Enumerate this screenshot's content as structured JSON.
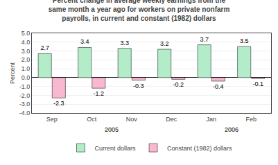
{
  "chart_data": {
    "type": "bar",
    "title": "Percent change in average weekly earnings from the\nsame month a year ago for workers on private nonfarm\npayrolls, in current and constant (1982) dollars",
    "categories": [
      "Sep",
      "Oct",
      "Nov",
      "Dec",
      "Jan",
      "Feb"
    ],
    "series": [
      {
        "name": "Current dollars",
        "color": "#b2ecc8",
        "values": [
          2.7,
          3.4,
          3.3,
          3.2,
          3.7,
          3.5
        ]
      },
      {
        "name": "Constant (1982) dollars",
        "color": "#f9b8d0",
        "values": [
          -2.3,
          -1.2,
          -0.3,
          -0.2,
          -0.4,
          -0.1
        ]
      }
    ],
    "ylabel": "Percent",
    "ylim": [
      -4.0,
      5.0
    ],
    "yticks": [
      {
        "value": -4.0,
        "label": "-4.0"
      },
      {
        "value": -3.0,
        "label": "-3.0"
      },
      {
        "value": -2.0,
        "label": "-2.0"
      },
      {
        "value": -1.0,
        "label": "-1.0"
      },
      {
        "value": 0.0,
        "label": "0.0"
      },
      {
        "value": 1.0,
        "label": "1.0"
      },
      {
        "value": 2.0,
        "label": "2.0"
      },
      {
        "value": 3.0,
        "label": "3.0"
      },
      {
        "value": 4.0,
        "label": "4.0"
      },
      {
        "value": 5.0,
        "label": "5.0"
      }
    ],
    "grid": true,
    "legend": "bottom",
    "data_labels": true,
    "annotations": [
      {
        "text": "2005",
        "categories": [
          "Sep",
          "Oct",
          "Nov",
          "Dec"
        ]
      },
      {
        "text": "2006",
        "categories": [
          "Jan",
          "Feb"
        ]
      }
    ]
  }
}
